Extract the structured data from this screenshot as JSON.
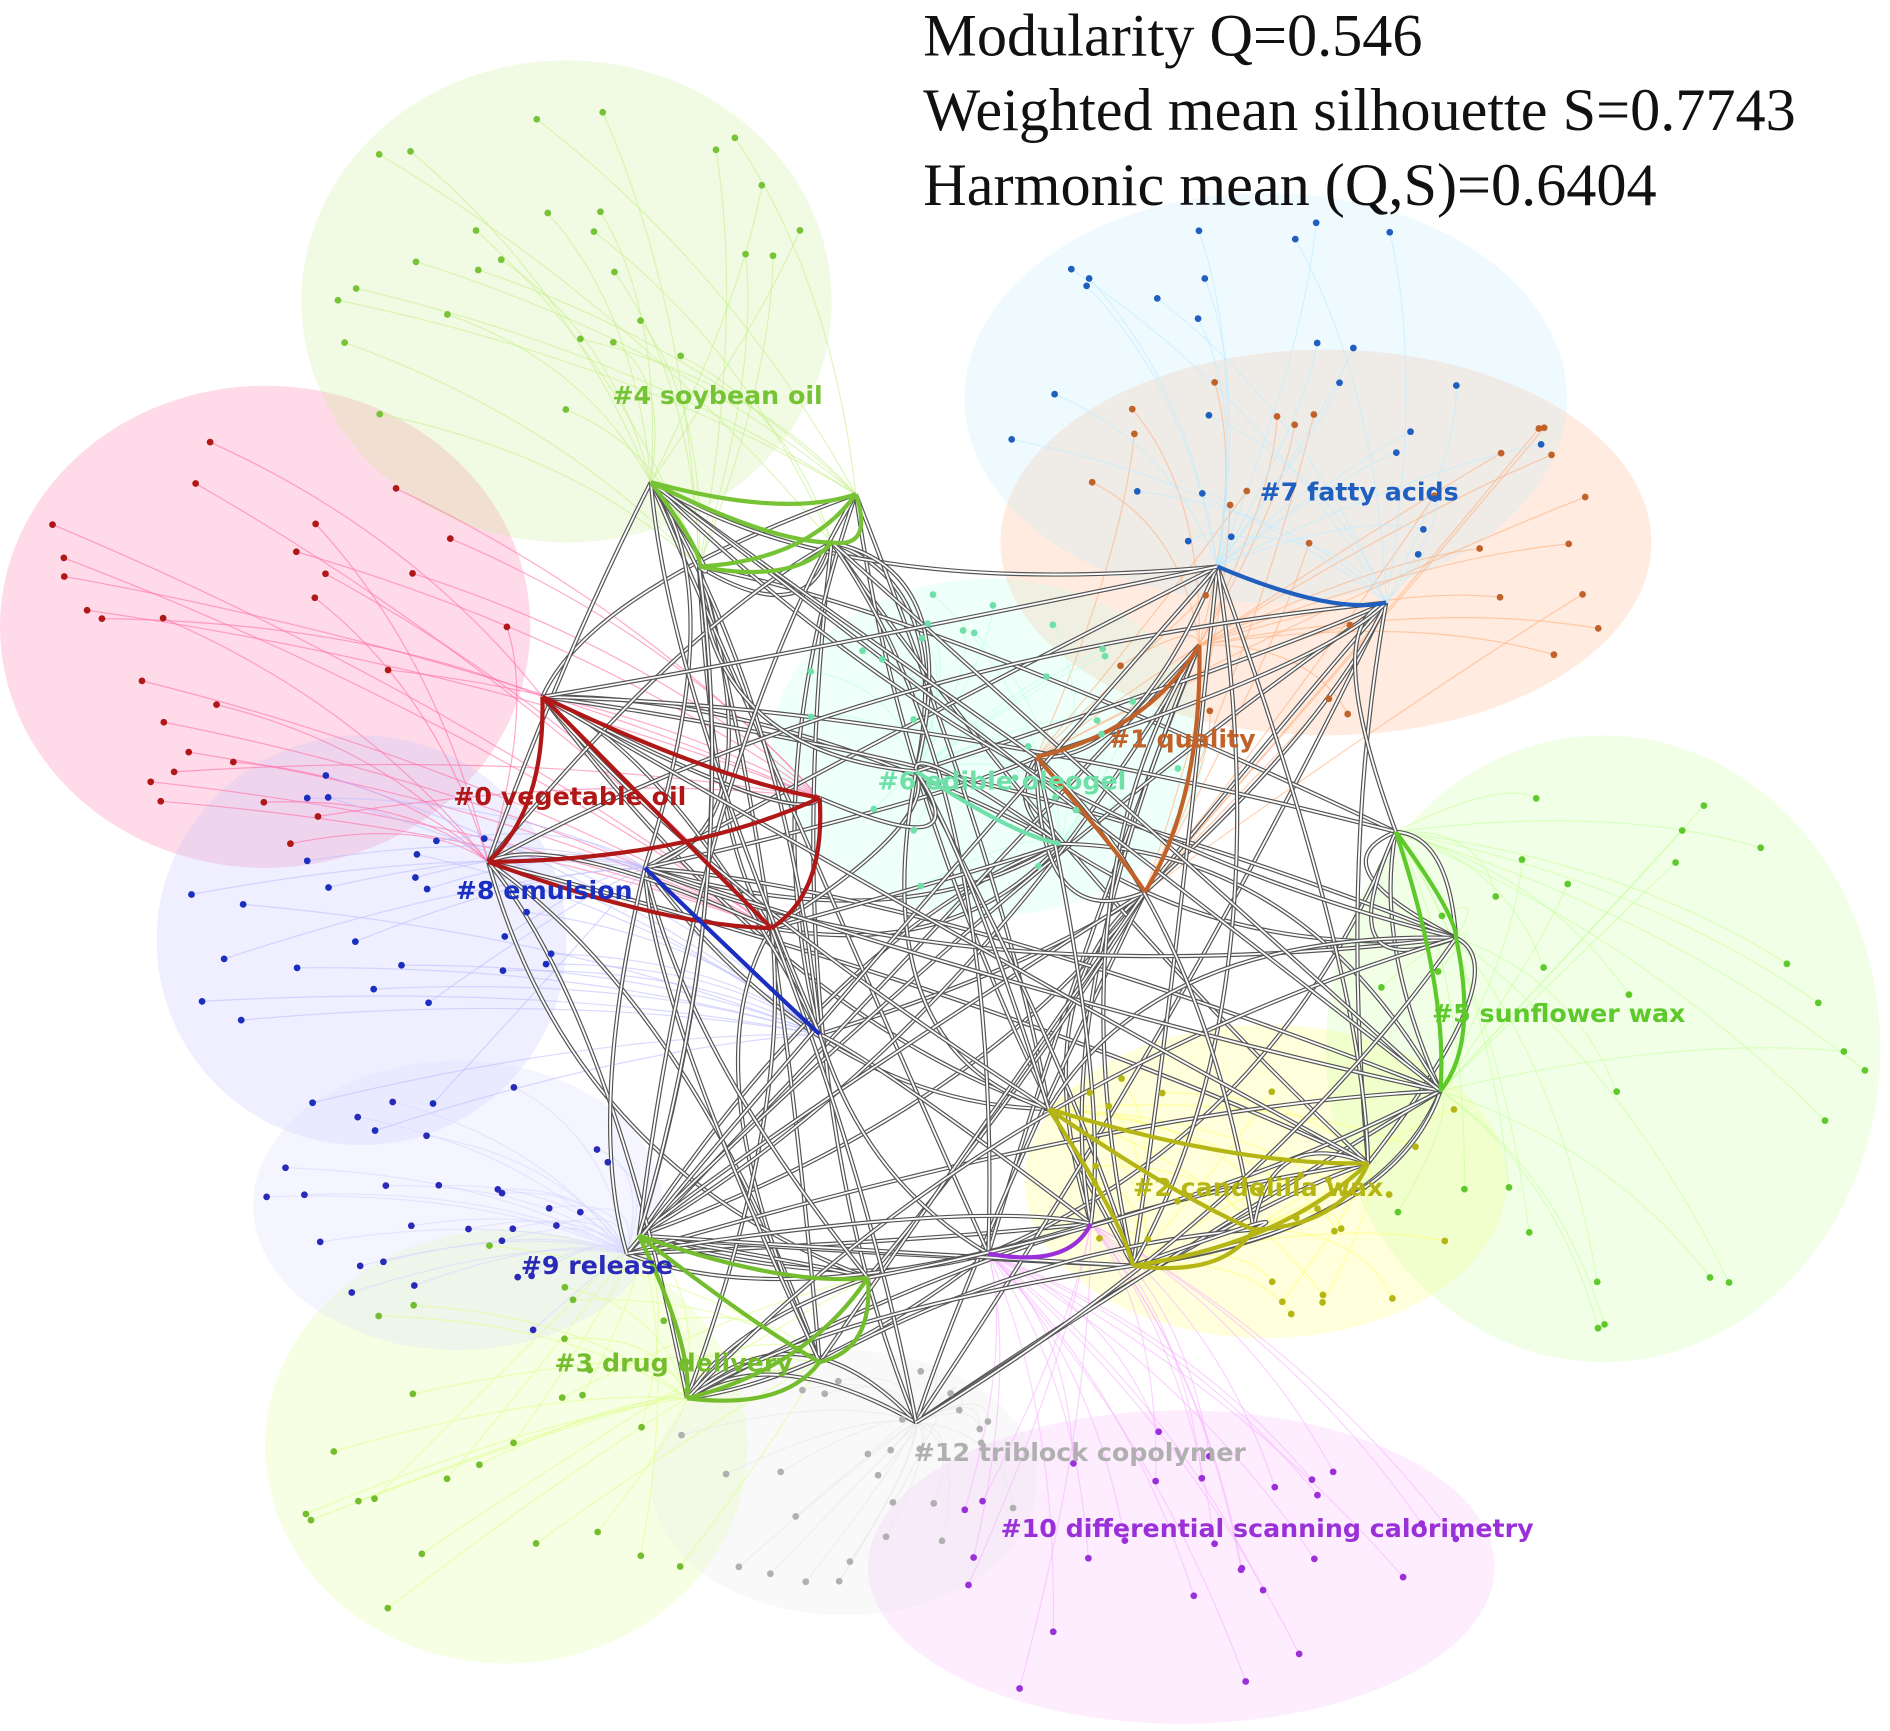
{
  "stats": {
    "lines": [
      "Modularity Q=0.546",
      "Weighted mean silhouette S=0.7743",
      "Harmonic mean (Q,S)=0.6404"
    ]
  },
  "clusters": [
    {
      "label": "#0 vegetable oil"
    },
    {
      "label": "#1 quality"
    },
    {
      "label": "#2 candelilla wax"
    },
    {
      "label": "#3 drug delivery"
    },
    {
      "label": "#4 soybean oil"
    },
    {
      "label": "#5 sunflower wax"
    },
    {
      "label": "#6 edible oleogel"
    },
    {
      "label": "#7 fatty acids"
    },
    {
      "label": "#8 emulsion"
    },
    {
      "label": "#9 release"
    },
    {
      "label": "#10 differential scanning calorimetry"
    },
    {
      "label": "#12 triblock copolymer"
    }
  ]
}
